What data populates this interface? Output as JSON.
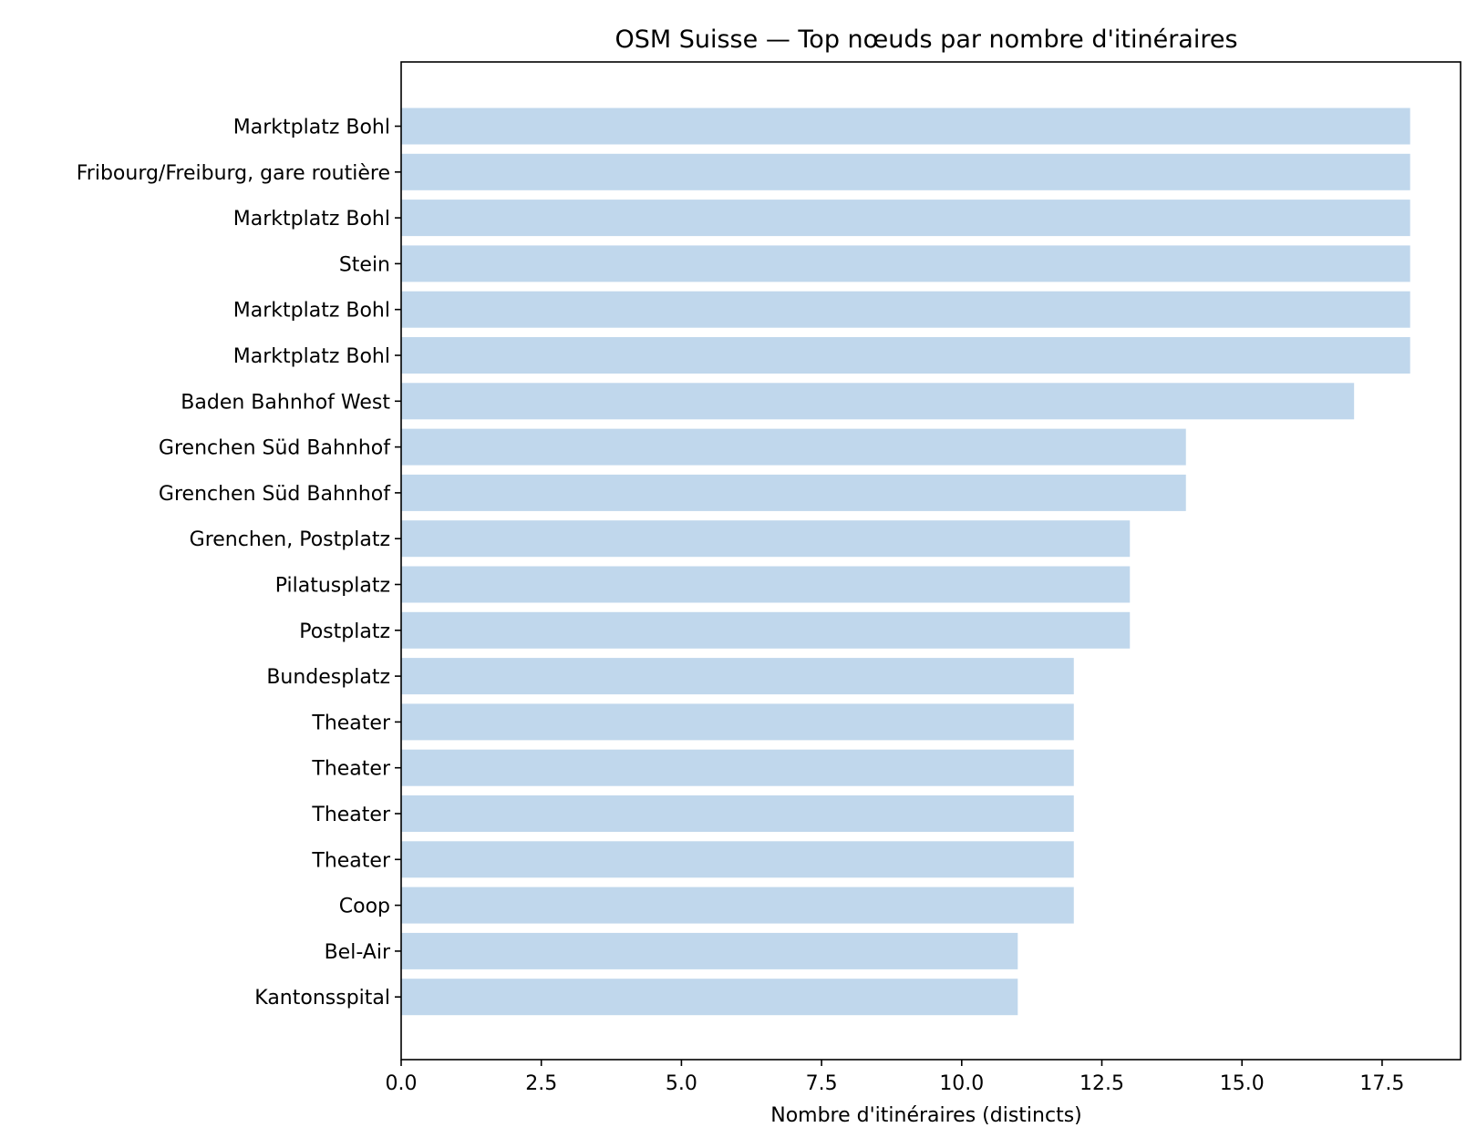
{
  "chart_data": {
    "type": "bar",
    "orientation": "horizontal",
    "title": "OSM Suisse — Top nœuds par nombre d'itinéraires",
    "xlabel": "Nombre d'itinéraires (distincts)",
    "ylabel": "",
    "xlim": [
      0,
      18.9
    ],
    "x_ticks": [
      "0.0",
      "2.5",
      "5.0",
      "7.5",
      "10.0",
      "12.5",
      "15.0",
      "17.5"
    ],
    "x_tick_values": [
      0,
      2.5,
      5,
      7.5,
      10,
      12.5,
      15,
      17.5
    ],
    "grid": false,
    "categories": [
      "Marktplatz Bohl",
      "Fribourg/Freiburg, gare routière",
      "Marktplatz Bohl",
      "Stein",
      "Marktplatz Bohl",
      "Marktplatz Bohl",
      "Baden Bahnhof West",
      "Grenchen Süd Bahnhof",
      "Grenchen Süd Bahnhof",
      "Grenchen, Postplatz",
      "Pilatusplatz",
      "Postplatz",
      "Bundesplatz",
      "Theater",
      "Theater",
      "Theater",
      "Theater",
      "Coop",
      "Bel-Air",
      "Kantonsspital"
    ],
    "values": [
      18,
      18,
      18,
      18,
      18,
      18,
      17,
      14,
      14,
      13,
      13,
      13,
      12,
      12,
      12,
      12,
      12,
      12,
      11,
      11
    ],
    "bar_color": "#c0d7ec"
  }
}
